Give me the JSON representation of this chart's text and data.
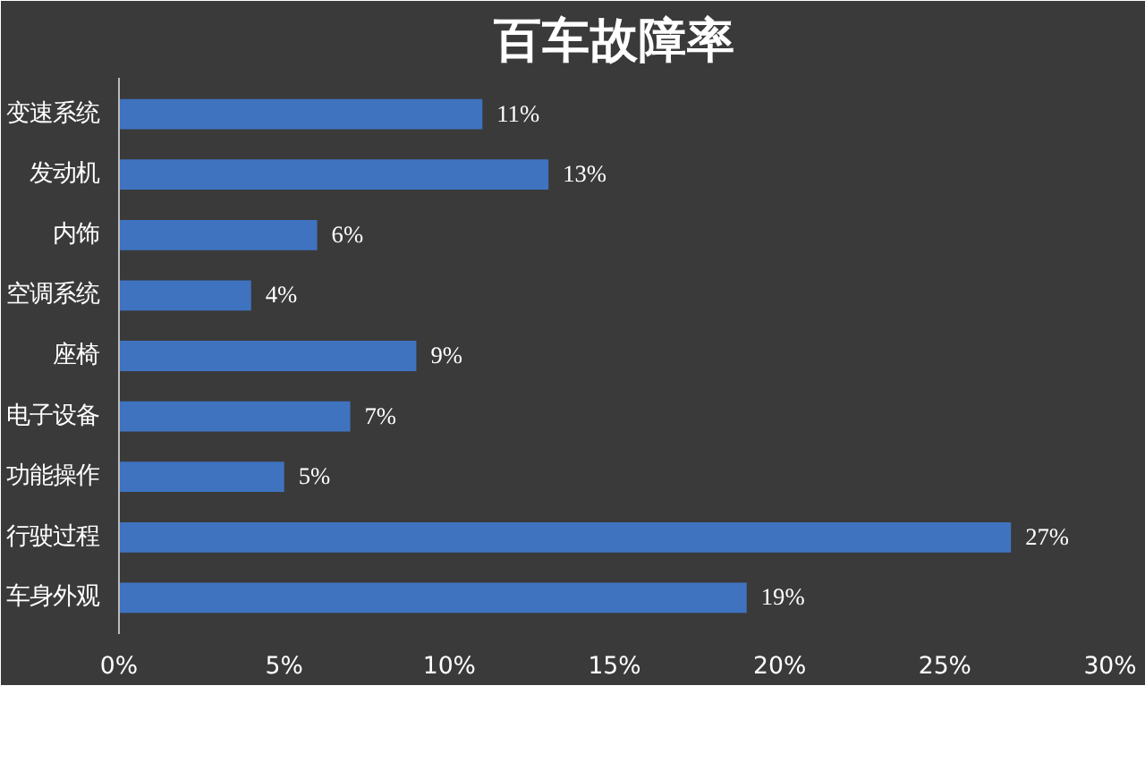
{
  "chart_data": {
    "type": "bar",
    "orientation": "horizontal",
    "title": "百车故障率",
    "categories": [
      "变速系统",
      "发动机",
      "内饰",
      "空调系统",
      "座椅",
      "电子设备",
      "功能操作",
      "行驶过程",
      "车身外观"
    ],
    "values": [
      11,
      13,
      6,
      4,
      9,
      7,
      5,
      27,
      19
    ],
    "value_labels": [
      "11%",
      "13%",
      "6%",
      "4%",
      "9%",
      "7%",
      "5%",
      "27%",
      "19%"
    ],
    "color": "#3f73c0",
    "xlim": [
      0,
      30
    ],
    "xticks": [
      {
        "value": 0,
        "label": "0%"
      },
      {
        "value": 5,
        "label": "5%"
      },
      {
        "value": 10,
        "label": "10%"
      },
      {
        "value": 15,
        "label": "15%"
      },
      {
        "value": 20,
        "label": "20%"
      },
      {
        "value": 25,
        "label": "25%"
      },
      {
        "value": 30,
        "label": "30%"
      }
    ],
    "grid": false
  }
}
